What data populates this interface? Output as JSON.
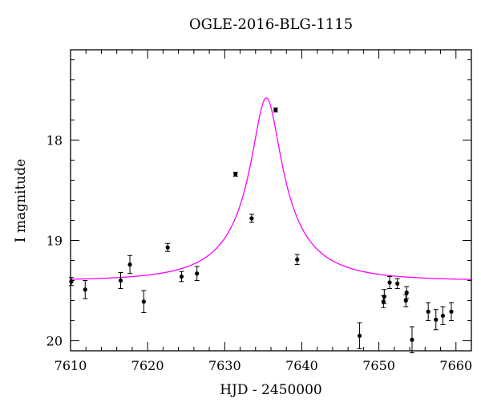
{
  "chart_data": {
    "type": "scatter",
    "title": "OGLE-2016-BLG-1115",
    "xlabel": "HJD - 2450000",
    "ylabel": "I magnitude",
    "xlim": [
      7610,
      7662
    ],
    "ylim": [
      20.1,
      17.1
    ],
    "y_inverted": true,
    "x_ticks": [
      7610,
      7620,
      7630,
      7640,
      7650,
      7660
    ],
    "y_ticks": [
      18,
      19,
      20
    ],
    "grid": false,
    "series": [
      {
        "kind": "points_with_errorbars",
        "color": "#000000",
        "points": [
          {
            "x": 7610.1,
            "y": 19.41,
            "err": 0.04
          },
          {
            "x": 7611.9,
            "y": 19.49,
            "err": 0.09
          },
          {
            "x": 7616.5,
            "y": 19.4,
            "err": 0.08
          },
          {
            "x": 7617.7,
            "y": 19.24,
            "err": 0.09
          },
          {
            "x": 7619.5,
            "y": 19.61,
            "err": 0.11
          },
          {
            "x": 7622.6,
            "y": 19.07,
            "err": 0.04
          },
          {
            "x": 7624.4,
            "y": 19.36,
            "err": 0.05
          },
          {
            "x": 7626.4,
            "y": 19.33,
            "err": 0.07
          },
          {
            "x": 7631.4,
            "y": 18.34,
            "err": 0.02
          },
          {
            "x": 7633.5,
            "y": 18.78,
            "err": 0.04
          },
          {
            "x": 7636.6,
            "y": 17.7,
            "err": 0.02
          },
          {
            "x": 7639.4,
            "y": 19.19,
            "err": 0.05
          },
          {
            "x": 7647.5,
            "y": 19.95,
            "err": 0.13
          },
          {
            "x": 7650.6,
            "y": 19.61,
            "err": 0.06
          },
          {
            "x": 7650.7,
            "y": 19.56,
            "err": 0.07
          },
          {
            "x": 7651.4,
            "y": 19.42,
            "err": 0.06
          },
          {
            "x": 7652.4,
            "y": 19.43,
            "err": 0.05
          },
          {
            "x": 7653.5,
            "y": 19.6,
            "err": 0.06
          },
          {
            "x": 7653.6,
            "y": 19.52,
            "err": 0.06
          },
          {
            "x": 7654.3,
            "y": 19.99,
            "err": 0.13
          },
          {
            "x": 7656.4,
            "y": 19.71,
            "err": 0.09
          },
          {
            "x": 7657.4,
            "y": 19.79,
            "err": 0.1
          },
          {
            "x": 7658.3,
            "y": 19.75,
            "err": 0.09
          },
          {
            "x": 7659.4,
            "y": 19.71,
            "err": 0.09
          }
        ]
      },
      {
        "kind": "model_curve",
        "color": "#ff00ff",
        "t0": 7635.4,
        "tE": 10,
        "u0": 0.2,
        "baseline": 19.4,
        "peak": 17.58
      }
    ]
  }
}
